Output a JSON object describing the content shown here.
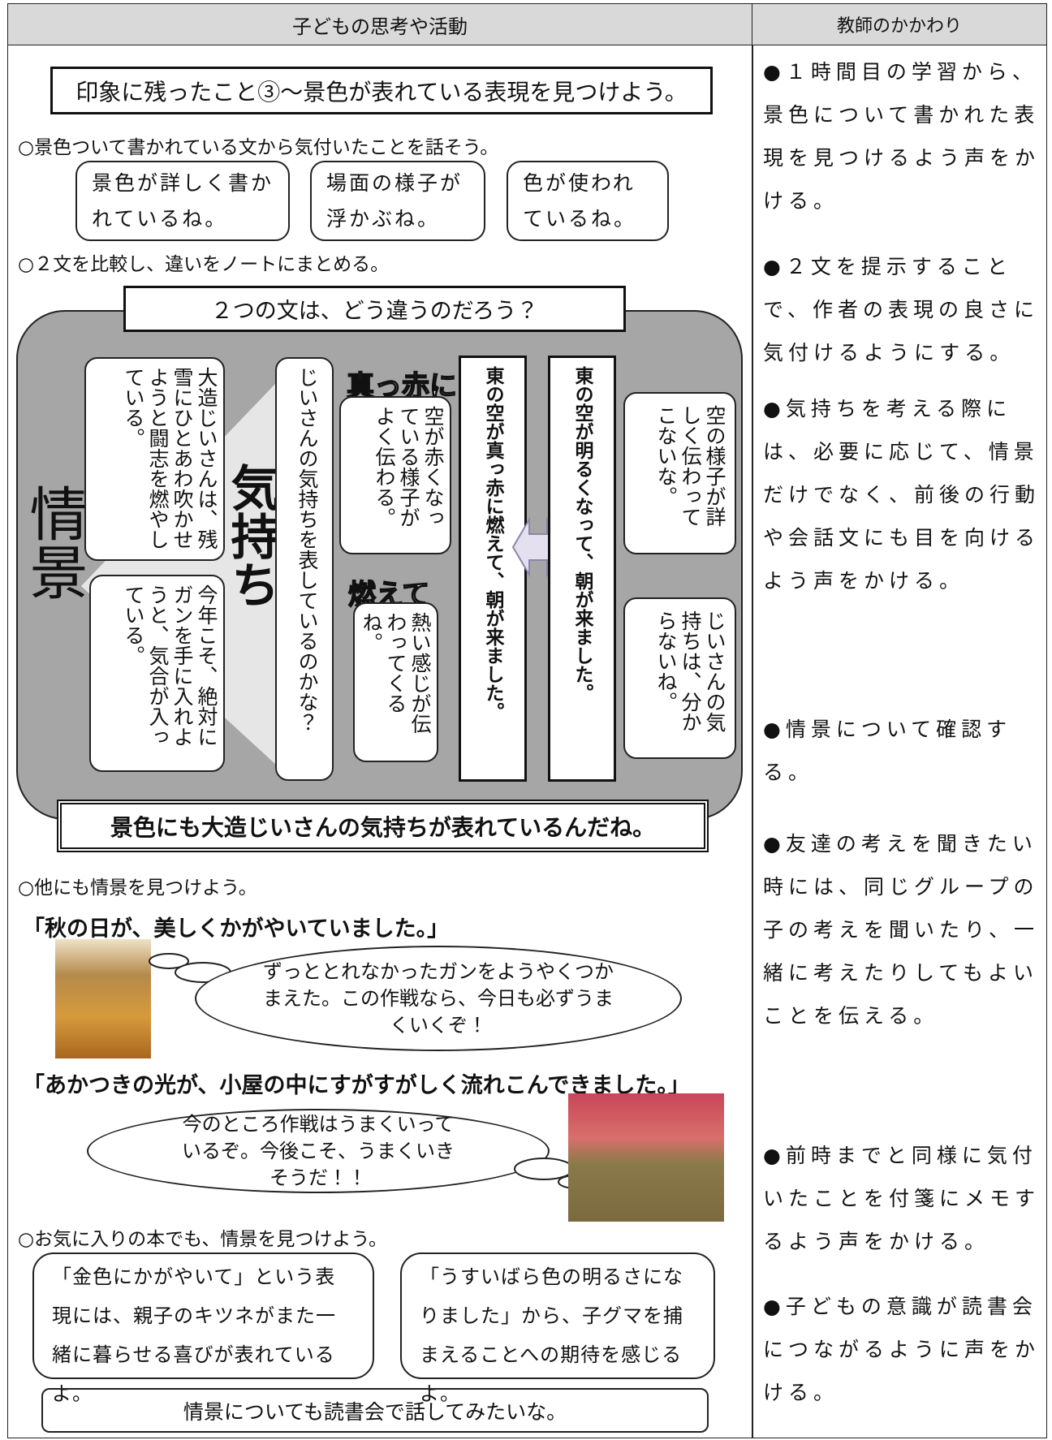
{
  "header": {
    "left": "子どもの思考や活動",
    "right": "教師のかかわり"
  },
  "left": {
    "title": "印象に残ったこと③～景色が表れている表現を見つけよう。",
    "activity1": "○景色ついて書かれている文から気付いたことを話そう。",
    "bubbles1": [
      "景色が詳しく書かれているね。",
      "場面の様子が浮かぶね。",
      "色が使われているね。"
    ],
    "activity2": "○２文を比較し、違いをノートにまとめる。",
    "question": "２つの文は、どう違うのだろう？",
    "jokei": "情景",
    "kimochi": "気持ち",
    "feeling_cards": [
      "大造じいさんは、残雪にひとあわ吹かせようと闘志を燃やしている。",
      "今年こそ、絶対にガンを手に入れようと、気合が入っている。"
    ],
    "feeling_question": "じいさんの気持ちを表しているのかな？",
    "word1": "真っ赤に",
    "word1_note": "空が赤くなっている様子がよく伝わる。",
    "word2": "燃えて",
    "word2_note": "熱い感じが伝わってくるね。",
    "sentence1": "東の空が真っ赤に燃えて、朝が来ました。",
    "sentence2": "東の空が明るくなって、朝が来ました。",
    "sentence2_notes": [
      "空の様子が詳しく伝わってこないな。",
      "じいさんの気持ちは、分からないね。"
    ],
    "conclusion": "景色にも大造じいさんの気持ちが表れているんだね。",
    "activity3": "○他にも情景を見つけよう。",
    "quote1": "「秋の日が、美しくかがやいていました。」",
    "thought1": "ずっととれなかったガンをようやくつかまえた。この作戦なら、今日も必ずうまくいくぞ！",
    "quote2": "「あかつきの光が、小屋の中にすがすがしく流れこんできました。」",
    "thought2": "今のところ作戦はうまくいっているぞ。今後こそ、うまくいきそうだ！！",
    "activity4": "○お気に入りの本でも、情景を見つけよう。",
    "books": [
      "「金色にかがやいて」という表現には、親子のキツネがまた一緒に暮らせる喜びが表れているよ。",
      "「うすいばら色の明るさになりました」から、子グマを捕まえることへの期待を感じるよ。"
    ],
    "wish": "情景についても読書会で話してみたいな。"
  },
  "right": {
    "notes": [
      "●１時間目の学習から、景色について書かれた表現を見つけるよう声をかける。",
      "●２文を提示することで、作者の表現の良さに気付けるようにする。",
      "●気持ちを考える際には、必要に応じて、情景だけでなく、前後の行動や会話文にも目を向けるよう声をかける。",
      "●情景について確認する。",
      "●友達の考えを聞きたい時には、同じグループの子の考えを聞いたり、一緒に考えたりしてもよいことを伝える。",
      "●前時までと同様に気付いたことを付箋にメモするよう声をかける。",
      "●子どもの意識が読書会につながるように声をかける。"
    ]
  }
}
